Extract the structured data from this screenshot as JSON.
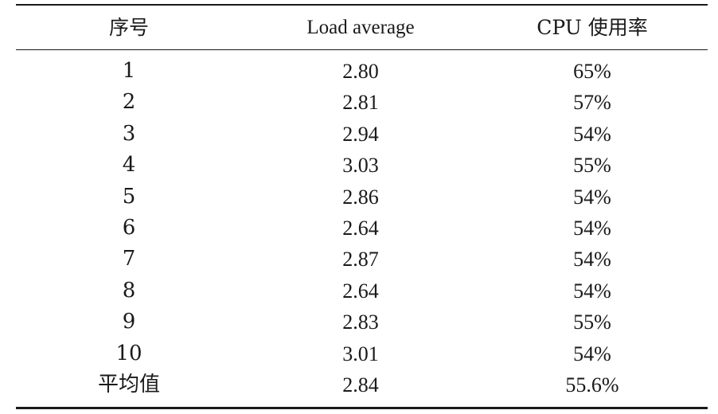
{
  "table": {
    "headers": [
      "序号",
      "Load average",
      "CPU 使用率"
    ],
    "rows": [
      [
        "1",
        "2.80",
        "65%"
      ],
      [
        "2",
        "2.81",
        "57%"
      ],
      [
        "3",
        "2.94",
        "54%"
      ],
      [
        "4",
        "3.03",
        "55%"
      ],
      [
        "5",
        "2.86",
        "54%"
      ],
      [
        "6",
        "2.64",
        "54%"
      ],
      [
        "7",
        "2.87",
        "54%"
      ],
      [
        "8",
        "2.64",
        "54%"
      ],
      [
        "9",
        "2.83",
        "55%"
      ],
      [
        "10",
        "3.01",
        "54%"
      ],
      [
        "平均值",
        "2.84",
        "55.6%"
      ]
    ]
  }
}
